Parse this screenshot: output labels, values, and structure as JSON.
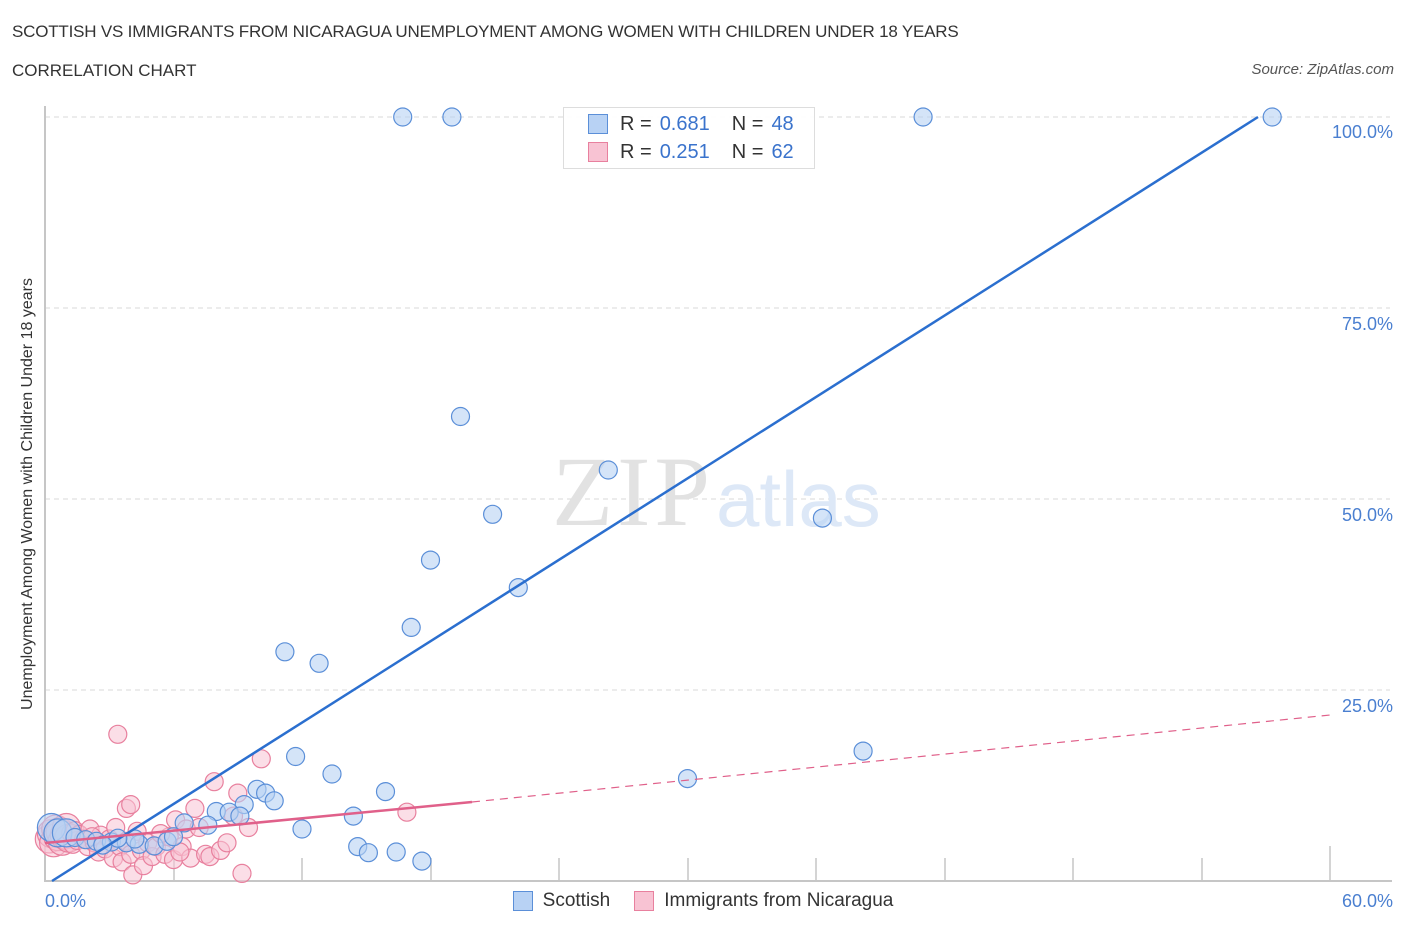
{
  "header": {
    "title": "SCOTTISH VS IMMIGRANTS FROM NICARAGUA UNEMPLOYMENT AMONG WOMEN WITH CHILDREN UNDER 18 YEARS",
    "subtitle": "CORRELATION CHART",
    "source": "Source: ZipAtlas.com"
  },
  "legend": {
    "rows": [
      {
        "series": "Scottish",
        "r_label": "R =",
        "r_value": "0.681",
        "n_label": "N =",
        "n_value": "48"
      },
      {
        "series": "Immigrants from Nicaragua",
        "r_label": "R =",
        "r_value": "0.251",
        "n_label": "N =",
        "n_value": "62"
      }
    ]
  },
  "axes": {
    "ylabel": "Unemployment Among Women with Children Under 18 years",
    "yticks": [
      "100.0%",
      "75.0%",
      "50.0%",
      "25.0%"
    ],
    "xtick_left": "0.0%",
    "xtick_right": "60.0%"
  },
  "bottom_legend": {
    "items": [
      "Scottish",
      "Immigrants from Nicaragua"
    ]
  },
  "colors": {
    "scottish_fill": "#b8d2f4",
    "scottish_stroke": "#5b8fd8",
    "scottish_line": "#2b6fcf",
    "nicaragua_fill": "#f8c3d3",
    "nicaragua_stroke": "#e8809e",
    "nicaragua_line": "#e0608a",
    "tick_text": "#4a7fd0"
  },
  "watermark": {
    "zip": "ZIP",
    "atlas": "atlas"
  },
  "chart_data": {
    "type": "scatter",
    "title": "SCOTTISH VS IMMIGRANTS FROM NICARAGUA UNEMPLOYMENT AMONG WOMEN WITH CHILDREN UNDER 18 YEARS",
    "subtitle": "CORRELATION CHART",
    "xlabel": "",
    "ylabel": "Unemployment Among Women with Children Under 18 years",
    "xlim": [
      0,
      60
    ],
    "ylim": [
      0,
      100
    ],
    "x_tick_labels": [
      "0.0%",
      "60.0%"
    ],
    "y_tick_labels": [
      "25.0%",
      "50.0%",
      "75.0%",
      "100.0%"
    ],
    "grid": {
      "horizontal_dashed": true
    },
    "legend_position": "top-center and bottom",
    "series": [
      {
        "name": "Scottish",
        "R": 0.681,
        "N": 48,
        "trendline": {
          "x": [
            0.3,
            56.3
          ],
          "y": [
            0,
            100
          ],
          "style": "solid"
        },
        "points": [
          [
            16.7,
            100
          ],
          [
            19.0,
            100
          ],
          [
            41.0,
            100
          ],
          [
            57.3,
            100
          ],
          [
            19.4,
            60.8
          ],
          [
            26.3,
            53.8
          ],
          [
            20.9,
            48.0
          ],
          [
            36.3,
            47.5
          ],
          [
            18.0,
            42.0
          ],
          [
            22.1,
            38.4
          ],
          [
            17.1,
            33.2
          ],
          [
            11.2,
            30.0
          ],
          [
            12.8,
            28.5
          ],
          [
            38.2,
            17.0
          ],
          [
            11.7,
            16.3
          ],
          [
            13.4,
            14.0
          ],
          [
            15.9,
            11.7
          ],
          [
            9.9,
            12.0
          ],
          [
            10.3,
            11.5
          ],
          [
            10.7,
            10.5
          ],
          [
            9.3,
            10.0
          ],
          [
            8.0,
            9.1
          ],
          [
            8.6,
            9.0
          ],
          [
            9.1,
            8.5
          ],
          [
            7.6,
            7.3
          ],
          [
            6.5,
            7.6
          ],
          [
            12.0,
            6.8
          ],
          [
            30.0,
            13.4
          ],
          [
            14.4,
            8.5
          ],
          [
            14.6,
            4.5
          ],
          [
            15.1,
            3.7
          ],
          [
            16.4,
            3.8
          ],
          [
            17.6,
            2.6
          ],
          [
            0.3,
            7.0
          ],
          [
            0.6,
            6.3
          ],
          [
            1.0,
            6.3
          ],
          [
            1.4,
            5.7
          ],
          [
            1.9,
            5.4
          ],
          [
            2.4,
            5.2
          ],
          [
            3.1,
            5.1
          ],
          [
            3.8,
            5.0
          ],
          [
            4.4,
            4.8
          ],
          [
            5.1,
            4.6
          ],
          [
            5.7,
            5.2
          ],
          [
            6.0,
            5.8
          ],
          [
            4.2,
            5.5
          ],
          [
            3.4,
            5.6
          ],
          [
            2.7,
            4.7
          ]
        ]
      },
      {
        "name": "Immigrants from Nicaragua",
        "R": 0.251,
        "N": 62,
        "trendline": {
          "x": [
            0,
            19.7,
            60
          ],
          "y": [
            5.0,
            10.3,
            21.8
          ],
          "style": "solid to 19.7 then dashed"
        },
        "points": [
          [
            0.2,
            5.5
          ],
          [
            0.3,
            6.2
          ],
          [
            0.4,
            5.0
          ],
          [
            0.5,
            6.8
          ],
          [
            0.6,
            5.8
          ],
          [
            0.7,
            6.5
          ],
          [
            0.8,
            5.2
          ],
          [
            0.9,
            6.0
          ],
          [
            1.0,
            7.0
          ],
          [
            1.1,
            5.6
          ],
          [
            1.2,
            6.3
          ],
          [
            1.3,
            4.8
          ],
          [
            1.4,
            6.6
          ],
          [
            1.5,
            5.3
          ],
          [
            1.6,
            6.1
          ],
          [
            1.8,
            5.5
          ],
          [
            2.0,
            4.5
          ],
          [
            2.1,
            6.8
          ],
          [
            2.3,
            5.0
          ],
          [
            2.5,
            3.8
          ],
          [
            2.6,
            6.0
          ],
          [
            2.8,
            4.2
          ],
          [
            3.0,
            5.5
          ],
          [
            3.2,
            3.0
          ],
          [
            3.3,
            7.0
          ],
          [
            3.5,
            4.5
          ],
          [
            3.6,
            2.5
          ],
          [
            3.8,
            5.2
          ],
          [
            4.0,
            3.5
          ],
          [
            4.1,
            0.8
          ],
          [
            4.3,
            6.5
          ],
          [
            4.5,
            4.0
          ],
          [
            4.6,
            2.0
          ],
          [
            4.8,
            5.0
          ],
          [
            5.0,
            3.2
          ],
          [
            5.2,
            4.5
          ],
          [
            3.4,
            19.2
          ],
          [
            3.8,
            9.5
          ],
          [
            4.0,
            10.0
          ],
          [
            5.6,
            3.5
          ],
          [
            5.8,
            5.8
          ],
          [
            6.0,
            2.8
          ],
          [
            6.1,
            8.0
          ],
          [
            6.4,
            4.5
          ],
          [
            6.6,
            6.8
          ],
          [
            6.8,
            3.0
          ],
          [
            7.0,
            9.5
          ],
          [
            7.2,
            7.0
          ],
          [
            7.5,
            3.5
          ],
          [
            6.3,
            3.8
          ],
          [
            7.7,
            3.2
          ],
          [
            7.9,
            13.0
          ],
          [
            8.2,
            4.0
          ],
          [
            8.5,
            5.0
          ],
          [
            8.8,
            8.5
          ],
          [
            9.2,
            1.0
          ],
          [
            9.0,
            11.5
          ],
          [
            10.1,
            16.0
          ],
          [
            9.5,
            7.0
          ],
          [
            16.9,
            9.0
          ],
          [
            5.4,
            6.2
          ],
          [
            2.2,
            5.8
          ]
        ]
      }
    ]
  }
}
